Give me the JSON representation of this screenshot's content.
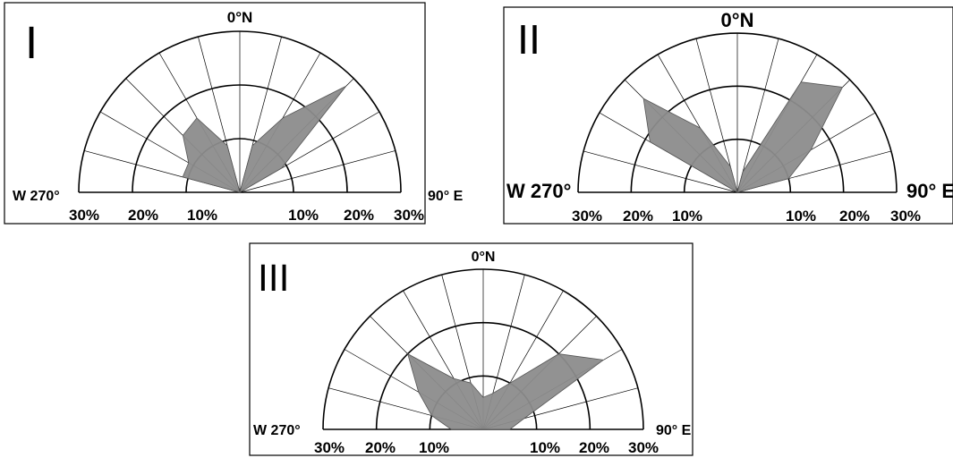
{
  "chart_data": [
    {
      "type": "rose",
      "title": "I",
      "north_label": "0°N",
      "west_label": "W 270°",
      "east_label": "90° E",
      "radial_tick_labels": [
        "30%",
        "20%",
        "10%",
        "10%",
        "20%",
        "30%"
      ],
      "rmax": 30,
      "rings": [
        10,
        20,
        30
      ],
      "spoke_step_deg": 15,
      "directions_deg": [
        270,
        285,
        300,
        315,
        330,
        345,
        0,
        15,
        30,
        45,
        60,
        75,
        90
      ],
      "values_pct": [
        0,
        11,
        11,
        15,
        16,
        9,
        0,
        9,
        16,
        28,
        9,
        0,
        0
      ]
    },
    {
      "type": "rose",
      "title": "II",
      "north_label": "0°N",
      "west_label": "W 270°",
      "east_label": "90° E",
      "radial_tick_labels": [
        "30%",
        "20%",
        "10%",
        "10%",
        "20%",
        "30%"
      ],
      "rmax": 30,
      "rings": [
        10,
        20,
        30
      ],
      "spoke_step_deg": 15,
      "directions_deg": [
        270,
        285,
        300,
        315,
        330,
        345,
        0,
        15,
        30,
        45,
        60,
        75,
        90
      ],
      "values_pct": [
        0,
        0,
        19,
        25,
        14,
        5,
        0,
        4,
        24,
        28,
        16,
        10,
        0
      ]
    },
    {
      "type": "rose",
      "title": "III",
      "north_label": "0°N",
      "west_label": "W 270°",
      "east_label": "90° E",
      "radial_tick_labels": [
        "30%",
        "20%",
        "10%",
        "10%",
        "20%",
        "30%"
      ],
      "rmax": 30,
      "rings": [
        10,
        20,
        30
      ],
      "spoke_step_deg": 15,
      "directions_deg": [
        270,
        285,
        300,
        315,
        330,
        345,
        0,
        15,
        30,
        45,
        60,
        75,
        90
      ],
      "values_pct": [
        6,
        10,
        14,
        20,
        11,
        9,
        6,
        7,
        10,
        20,
        26,
        8,
        5
      ]
    }
  ],
  "colors": {
    "rose_fill": "#8c8c8c",
    "line": "#000000",
    "background": "#ffffff"
  }
}
